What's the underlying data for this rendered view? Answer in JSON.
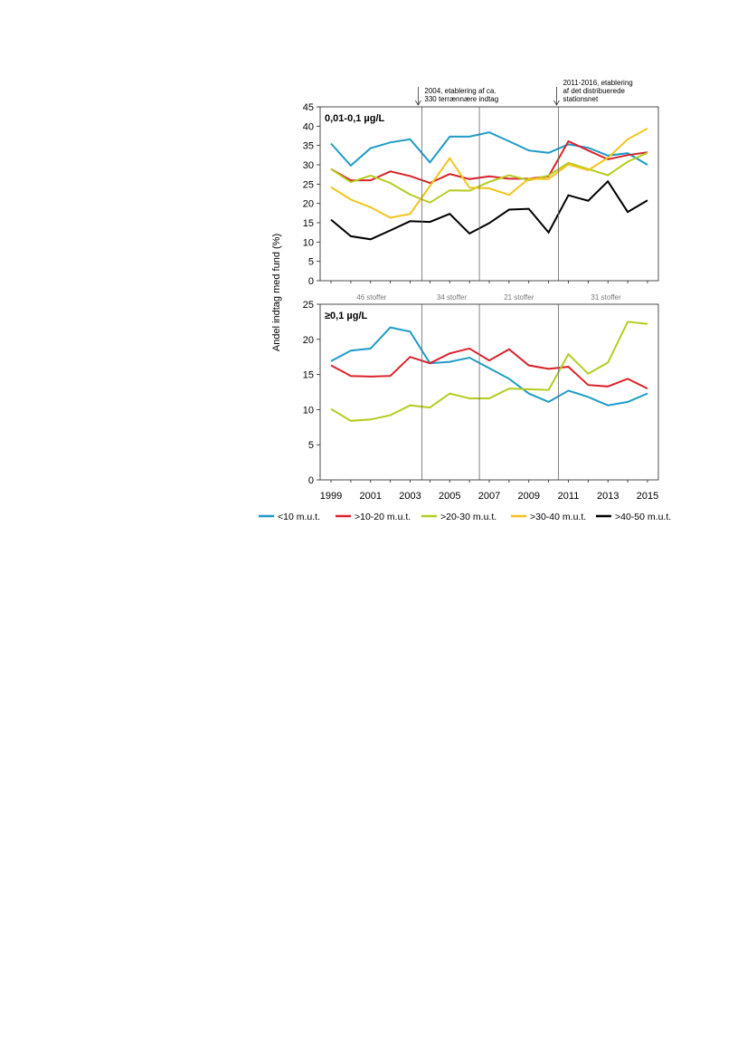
{
  "chart_data": {
    "type": "line",
    "ylabel": "Andel indtag med fund (%)",
    "x": [
      1999,
      2000,
      2001,
      2002,
      2003,
      2004,
      2005,
      2006,
      2007,
      2008,
      2009,
      2010,
      2011,
      2012,
      2013,
      2014,
      2015
    ],
    "x_ticks": [
      "1999",
      "2001",
      "2003",
      "2005",
      "2007",
      "2009",
      "2011",
      "2013",
      "2015"
    ],
    "colors": {
      "<10 m.u.t.": "#1e9bc7",
      ">10-20 m.u.t.": "#d9222a",
      ">20-30 m.u.t.": "#b5cc1e",
      ">30-40 m.u.t.": "#f2c419",
      ">40-50 m.u.t.": "#000000"
    },
    "legend": {
      "position": "bottom",
      "entries": [
        "<10 m.u.t.",
        ">10-20 m.u.t.",
        ">20-30 m.u.t.",
        ">30-40 m.u.t.",
        ">40-50 m.u.t."
      ]
    },
    "annotations": [
      {
        "x": 2004,
        "lines": [
          "2004, etablering af ca.",
          "330 terrænnære indtag"
        ]
      },
      {
        "x": 2011,
        "lines": [
          "2011-2016, etablering",
          "af det distribuerede",
          "stationsnet"
        ]
      }
    ],
    "period_dividers": [
      2003.6,
      2006.5,
      2010.5
    ],
    "period_labels": [
      {
        "x": 2001.05,
        "label": "46 stoffer"
      },
      {
        "x": 2005.1,
        "label": "34 stoffer"
      },
      {
        "x": 2008.5,
        "label": "21 stoffer"
      },
      {
        "x": 2012.9,
        "label": "31 stoffer"
      }
    ],
    "panels": [
      {
        "title": "0,01-0,1 µg/L",
        "ylim": [
          0,
          45
        ],
        "yticks": [
          0,
          5,
          10,
          15,
          20,
          25,
          30,
          35,
          40,
          45
        ],
        "series": [
          {
            "name": "<10 m.u.t.",
            "values": [
              35.5,
              29.8,
              34.3,
              35.8,
              36.6,
              30.6,
              37.3,
              37.3,
              38.4,
              36.1,
              33.7,
              33.1,
              35.3,
              34.4,
              32.4,
              33.0,
              30.0
            ]
          },
          {
            "name": ">10-20 m.u.t.",
            "values": [
              28.9,
              26.0,
              26.0,
              28.3,
              27.1,
              25.3,
              27.6,
              26.3,
              27.0,
              26.4,
              26.4,
              27.0,
              36.1,
              33.7,
              31.4,
              32.5,
              33.2
            ]
          },
          {
            "name": ">20-30 m.u.t.",
            "values": [
              28.9,
              25.5,
              27.2,
              25.3,
              22.3,
              20.2,
              23.4,
              23.3,
              25.6,
              27.3,
              26.0,
              27.2,
              30.5,
              28.9,
              27.3,
              30.8,
              33.1
            ]
          },
          {
            "name": ">30-40 m.u.t.",
            "values": [
              24.2,
              21.0,
              19.0,
              16.3,
              17.3,
              24.5,
              31.7,
              24.1,
              23.9,
              22.2,
              26.4,
              26.3,
              30.1,
              28.6,
              31.8,
              36.6,
              39.4
            ]
          },
          {
            "name": ">40-50 m.u.t.",
            "values": [
              15.8,
              11.5,
              10.7,
              13.0,
              15.4,
              15.2,
              17.3,
              12.2,
              14.9,
              18.4,
              18.6,
              12.5,
              22.1,
              20.7,
              25.7,
              17.8,
              20.8
            ]
          }
        ]
      },
      {
        "title": "≥0,1 µg/L",
        "ylim": [
          0,
          25
        ],
        "yticks": [
          0,
          5,
          10,
          15,
          20,
          25
        ],
        "series": [
          {
            "name": "<10 m.u.t.",
            "values": [
              16.9,
              18.4,
              18.7,
              21.7,
              21.1,
              16.6,
              16.8,
              17.4,
              15.9,
              14.4,
              12.3,
              11.1,
              12.7,
              11.8,
              10.6,
              11.1,
              12.3
            ]
          },
          {
            "name": ">10-20 m.u.t.",
            "values": [
              16.3,
              14.8,
              14.7,
              14.8,
              17.5,
              16.6,
              18.0,
              18.7,
              17.0,
              18.6,
              16.3,
              15.8,
              16.1,
              13.5,
              13.3,
              14.4,
              13.0
            ]
          },
          {
            "name": ">20-30 m.u.t.",
            "values": [
              10.1,
              8.4,
              8.6,
              9.2,
              10.6,
              10.3,
              12.3,
              11.6,
              11.6,
              13.0,
              12.9,
              12.8,
              17.9,
              15.1,
              16.7,
              22.5,
              22.2
            ]
          }
        ]
      }
    ]
  }
}
